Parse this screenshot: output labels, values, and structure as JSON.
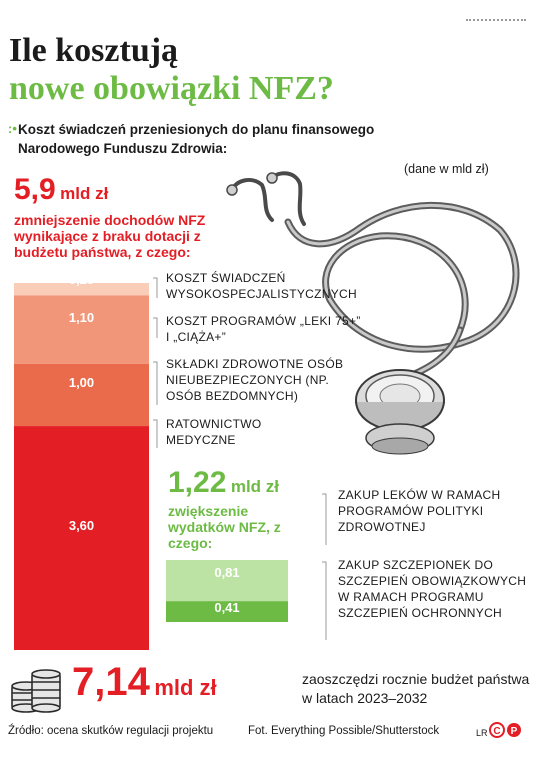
{
  "title_line1": "Ile kosztują",
  "title_line2": "nowe obowiązki NFZ?",
  "subtitle_marker": ":•",
  "subtitle": "Koszt świadczeń przeniesionych do planu finansowego Narodowego Funduszu Zdrowia:",
  "unit_note": "(dane w  mld zł)",
  "red_block": {
    "amount": "5,9",
    "unit": "mld zł",
    "description": "zmniejszenie dochodów NFZ wynikające z braku dotacji z budżetu państwa, z czego:"
  },
  "green_block": {
    "amount": "1,22",
    "unit": "mld zł",
    "description": "zwiększenie wydatków NFZ, z czego:"
  },
  "total": {
    "amount": "7,14",
    "unit": "mld zł",
    "description": "zaoszczędzi rocznie budżet państwa w latach 2023–2032"
  },
  "footer": {
    "source": "Źródło: ocena skutków regulacji projektu",
    "photo": "Fot. Everything Possible/Shutterstock",
    "author": "LR",
    "logo": "©P"
  },
  "colors": {
    "red": "#e31e24",
    "green": "#6dbb45",
    "red_shades": [
      "#f9cdb8",
      "#f2967a",
      "#ea6b4c",
      "#e31e24"
    ],
    "green_shades": [
      "#bde3a4",
      "#6dbb45"
    ]
  },
  "chart_data": {
    "type": "bar",
    "stacked": true,
    "unit": "mld zł",
    "series": [
      {
        "categories": [
          "KOSZT ŚWIADCZEŃ WYSOKOSPECJALISTYCZNYCH",
          "KOSZT PROGRAMÓW „LEKI 75+” I „CIĄŻA+”",
          "SKŁADKI ZDROWOTNE OSÓB NIEUBEZPIECZONYCH (NP. OSÓB BEZDOMNYCH)",
          "RATOWNICTWO MEDYCZNE"
        ],
        "values": [
          0.2,
          1.1,
          1.0,
          3.6
        ],
        "labels": [
          "0,20",
          "1,10",
          "1,00",
          "3,60"
        ],
        "total": 5.9
      },
      {
        "categories": [
          "ZAKUP LEKÓW W RAMACH PROGRAMÓW POLITYKI ZDROWOTNEJ",
          "ZAKUP SZCZEPIONEK DO SZCZEPIEŃ OBOWIĄZKOWYCH W RAMACH PROGRAMU SZCZEPIEŃ OCHRONNYCH"
        ],
        "values": [
          0.81,
          0.41
        ],
        "labels": [
          "0,81",
          "0,41"
        ],
        "total": 1.22
      }
    ]
  }
}
